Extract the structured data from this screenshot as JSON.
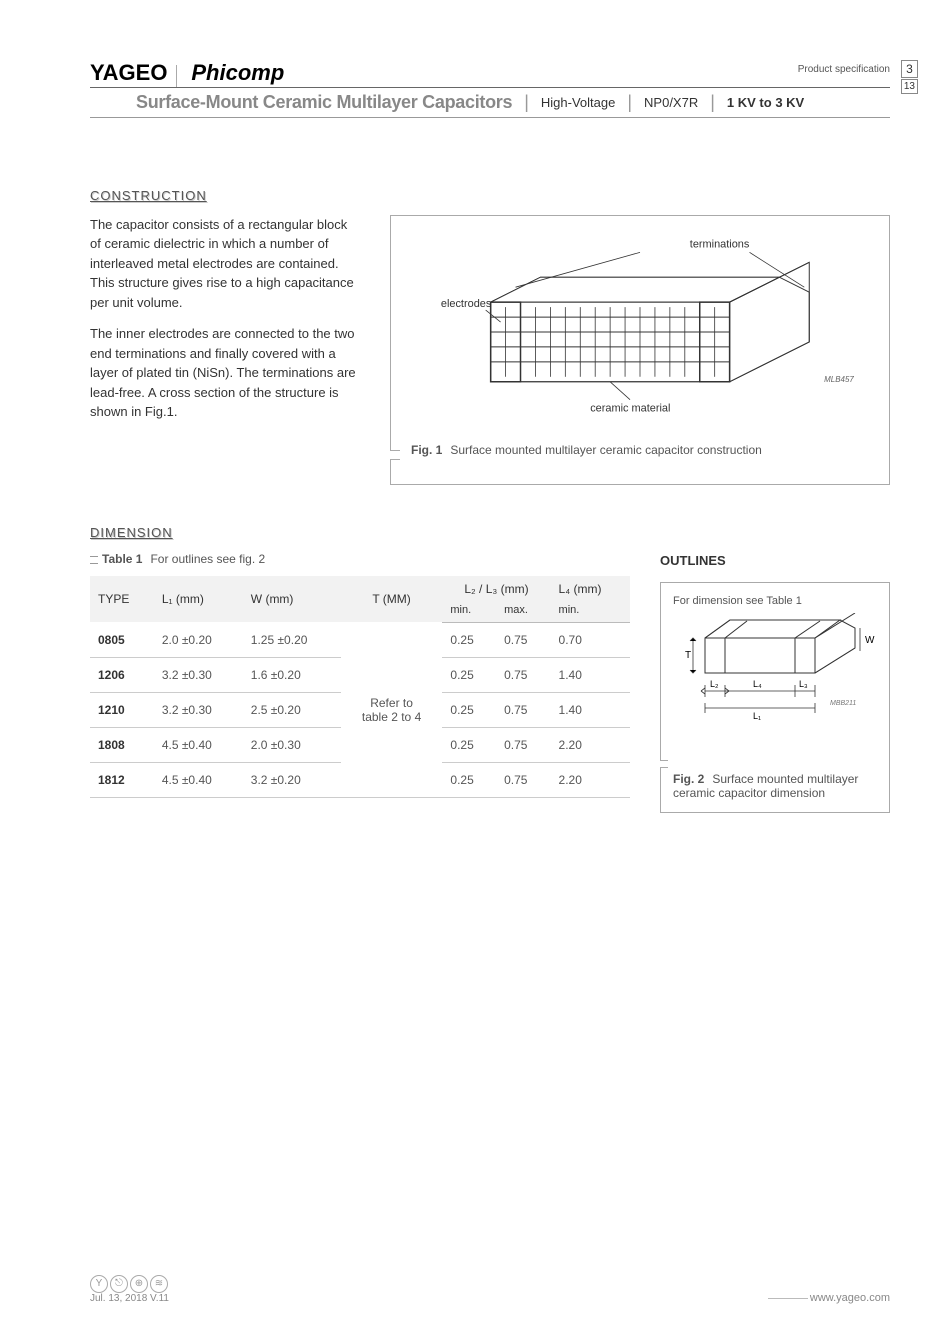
{
  "header": {
    "logo1": "YAGEO",
    "logo2": "Phicomp",
    "subtitle": "Surface-Mount Ceramic Multilayer Capacitors",
    "tag1": "High-Voltage",
    "tag2": "NP0/X7R",
    "tag3": "1 KV to 3 KV",
    "prodspec": "Product specification",
    "page_current": "3",
    "page_total": "13"
  },
  "construction": {
    "title": "CONSTRUCTION",
    "para1": "The capacitor consists of a rectangular block of ceramic dielectric in which a number of interleaved metal electrodes are contained. This structure gives rise to a high capacitance per unit volume.",
    "para2": "The inner electrodes are connected to the two end terminations and finally covered with a layer of plated tin (NiSn). The terminations are lead-free. A cross section of the structure is shown in Fig.1.",
    "fig1_label_terminations": "terminations",
    "fig1_label_electrodes": "electrodes",
    "fig1_label_ceramic": "ceramic material",
    "fig1_code": "MLB457",
    "fig1_caption_num": "Fig. 1",
    "fig1_caption_text": "Surface mounted multilayer ceramic capacitor construction"
  },
  "dimension": {
    "title": "DIMENSION",
    "table_caption_num": "Table 1",
    "table_caption_text": "For outlines see fig. 2",
    "columns": {
      "type": "TYPE",
      "l1": "L₁ (mm)",
      "w": "W (mm)",
      "t": "T (MM)",
      "l23": "L₂ / L₃ (mm)",
      "l4": "L₄ (mm)",
      "min": "min.",
      "max": "max.",
      "min2": "min."
    },
    "tmm_text": "Refer to table 2 to 4",
    "rows": [
      {
        "type": "0805",
        "l1": "2.0 ±0.20",
        "w": "1.25 ±0.20",
        "l23min": "0.25",
        "l23max": "0.75",
        "l4min": "0.70"
      },
      {
        "type": "1206",
        "l1": "3.2 ±0.30",
        "w": "1.6 ±0.20",
        "l23min": "0.25",
        "l23max": "0.75",
        "l4min": "1.40"
      },
      {
        "type": "1210",
        "l1": "3.2 ±0.30",
        "w": "2.5 ±0.20",
        "l23min": "0.25",
        "l23max": "0.75",
        "l4min": "1.40"
      },
      {
        "type": "1808",
        "l1": "4.5 ±0.40",
        "w": "2.0 ±0.30",
        "l23min": "0.25",
        "l23max": "0.75",
        "l4min": "2.20"
      },
      {
        "type": "1812",
        "l1": "4.5 ±0.40",
        "w": "3.2 ±0.20",
        "l23min": "0.25",
        "l23max": "0.75",
        "l4min": "2.20"
      }
    ]
  },
  "outlines": {
    "title": "OUTLINES",
    "fig2_top": "For dimension see Table 1",
    "fig2_l2": "L₂",
    "fig2_l4": "L₄",
    "fig2_l3": "L₃",
    "fig2_l1": "L₁",
    "fig2_t": "T",
    "fig2_w": "W",
    "fig2_code": "MBB211",
    "fig2_caption_num": "Fig. 2",
    "fig2_caption_text": "Surface mounted multilayer ceramic capacitor dimension"
  },
  "footer": {
    "date": "Jul. 13, 2018 V.11",
    "url": "www.yageo.com"
  },
  "colors": {
    "text": "#333333",
    "muted": "#888888",
    "border": "#aaaaaa",
    "thead_bg": "#f2f2f2"
  }
}
